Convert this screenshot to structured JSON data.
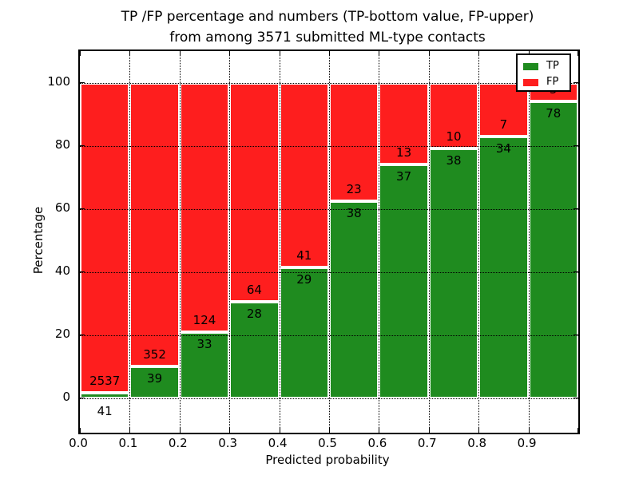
{
  "title": {
    "line1": "TP /FP percentage and numbers (TP-bottom value, FP-upper)",
    "line2": "from among 3571 submitted ML-type contacts"
  },
  "axes": {
    "xlabel": "Predicted probability",
    "ylabel": "Percentage"
  },
  "legend": {
    "items": [
      {
        "label": "TP",
        "color": "#1f8b1f"
      },
      {
        "label": "FP",
        "color": "#fe1e1e"
      }
    ]
  },
  "chart_data": {
    "type": "bar",
    "subtype": "stacked-percentage-histogram",
    "title": "TP /FP percentage and numbers (TP-bottom value, FP-upper) from among 3571 submitted ML-type contacts",
    "xlabel": "Predicted probability",
    "ylabel": "Percentage",
    "total_contacts": 3571,
    "bin_start": [
      0.0,
      0.1,
      0.2,
      0.3,
      0.4,
      0.5,
      0.6,
      0.7,
      0.8,
      0.9
    ],
    "bin_width": 0.1,
    "series": [
      {
        "name": "TP",
        "color": "#1f8b1f",
        "counts": [
          41,
          39,
          33,
          28,
          29,
          38,
          37,
          38,
          34,
          78
        ],
        "pct": [
          1.59,
          9.97,
          21.02,
          30.43,
          41.43,
          62.3,
          74.0,
          79.17,
          82.93,
          93.98
        ]
      },
      {
        "name": "FP",
        "color": "#fe1e1e",
        "counts": [
          2537,
          352,
          124,
          64,
          41,
          23,
          13,
          10,
          7,
          5
        ],
        "pct": [
          98.41,
          90.03,
          78.98,
          69.57,
          58.57,
          37.7,
          26.0,
          20.83,
          17.07,
          6.02
        ]
      }
    ],
    "bar_edge_color": "#ffffff",
    "xticks": [
      "0.0",
      "0.1",
      "0.2",
      "0.3",
      "0.4",
      "0.5",
      "0.6",
      "0.7",
      "0.8",
      "0.9"
    ],
    "yticks": [
      0,
      20,
      40,
      60,
      80,
      100
    ],
    "xlim": [
      0.0,
      1.0
    ],
    "ylim": [
      -11,
      110
    ],
    "grid": true,
    "grid_style": "dotted",
    "legend_position": "upper right"
  }
}
